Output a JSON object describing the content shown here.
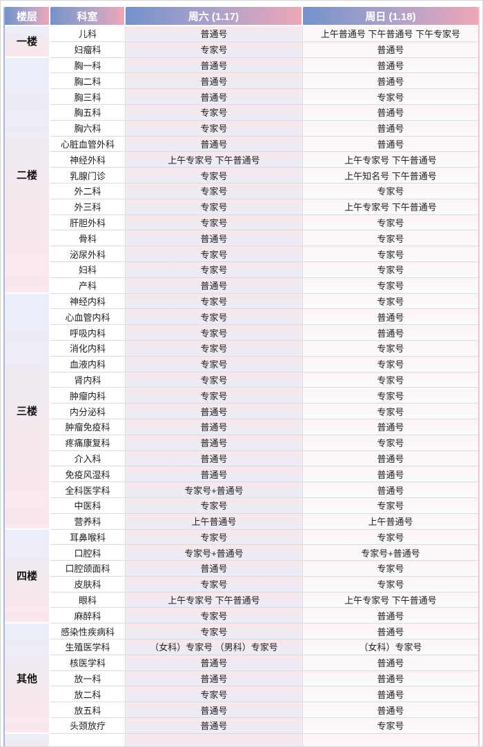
{
  "table": {
    "headers": {
      "floor": "楼层",
      "department": "科室",
      "saturday": "周六 (1.17)",
      "sunday": "周日 (1.18)"
    },
    "groups": [
      {
        "floor": "一楼",
        "rows": [
          {
            "dept": "儿科",
            "sat": "普通号",
            "sun": "上午普通号 下午普通号 下午专家号"
          },
          {
            "dept": "妇瘤科",
            "sat": "专家号",
            "sun": "普通号"
          }
        ]
      },
      {
        "floor": "二楼",
        "rows": [
          {
            "dept": "胸一科",
            "sat": "普通号",
            "sun": "普通号"
          },
          {
            "dept": "胸二科",
            "sat": "普通号",
            "sun": "普通号"
          },
          {
            "dept": "胸三科",
            "sat": "普通号",
            "sun": "专家号"
          },
          {
            "dept": "胸五科",
            "sat": "专家号",
            "sun": "普通号"
          },
          {
            "dept": "胸六科",
            "sat": "专家号",
            "sun": "普通号"
          },
          {
            "dept": "心脏血管外科",
            "sat": "普通号",
            "sun": "普通号"
          },
          {
            "dept": "神经外科",
            "sat": "上午专家号 下午普通号",
            "sun": "上午专家号 下午普通号"
          },
          {
            "dept": "乳腺门诊",
            "sat": "专家号",
            "sun": "上午知名号 下午普通号"
          },
          {
            "dept": "外二科",
            "sat": "专家号",
            "sun": "专家号"
          },
          {
            "dept": "外三科",
            "sat": "专家号",
            "sun": "上午专家号 下午普通号"
          },
          {
            "dept": "肝胆外科",
            "sat": "专家号",
            "sun": "专家号"
          },
          {
            "dept": "骨科",
            "sat": "普通号",
            "sun": "专家号"
          },
          {
            "dept": "泌尿外科",
            "sat": "专家号",
            "sun": "专家号"
          },
          {
            "dept": "妇科",
            "sat": "专家号",
            "sun": "专家号"
          },
          {
            "dept": "产科",
            "sat": "普通号",
            "sun": "专家号"
          }
        ]
      },
      {
        "floor": "三楼",
        "rows": [
          {
            "dept": "神经内科",
            "sat": "专家号",
            "sun": "专家号"
          },
          {
            "dept": "心血管内科",
            "sat": "专家号",
            "sun": "普通号"
          },
          {
            "dept": "呼吸内科",
            "sat": "专家号",
            "sun": "普通号"
          },
          {
            "dept": "消化内科",
            "sat": "专家号",
            "sun": "专家号"
          },
          {
            "dept": "血液内科",
            "sat": "专家号",
            "sun": "专家号"
          },
          {
            "dept": "肾内科",
            "sat": "专家号",
            "sun": "专家号"
          },
          {
            "dept": "肿瘤内科",
            "sat": "专家号",
            "sun": "专家号"
          },
          {
            "dept": "内分泌科",
            "sat": "普通号",
            "sun": "专家号"
          },
          {
            "dept": "肿瘤免疫科",
            "sat": "普通号",
            "sun": "普通号"
          },
          {
            "dept": "疼痛康复科",
            "sat": "普通号",
            "sun": "专家号"
          },
          {
            "dept": "介入科",
            "sat": "普通号",
            "sun": "普通号"
          },
          {
            "dept": "免疫风湿科",
            "sat": "普通号",
            "sun": "普通号"
          },
          {
            "dept": "全科医学科",
            "sat": "专家号+普通号",
            "sun": "普通号"
          },
          {
            "dept": "中医科",
            "sat": "专家号",
            "sun": "专家号"
          },
          {
            "dept": "营养科",
            "sat": "上午普通号",
            "sun": "上午普通号"
          }
        ]
      },
      {
        "floor": "四楼",
        "rows": [
          {
            "dept": "耳鼻喉科",
            "sat": "专家号",
            "sun": "专家号"
          },
          {
            "dept": "口腔科",
            "sat": "专家号+普通号",
            "sun": "专家号+普通号"
          },
          {
            "dept": "口腔颌面科",
            "sat": "普通号",
            "sun": "专家号"
          },
          {
            "dept": "皮肤科",
            "sat": "专家号",
            "sun": "专家号"
          },
          {
            "dept": "眼科",
            "sat": "上午专家号 下午普通号",
            "sun": "上午专家号 下午普通号"
          },
          {
            "dept": "麻醉科",
            "sat": "专家号",
            "sun": "普通号"
          }
        ]
      },
      {
        "floor": "其他",
        "rows": [
          {
            "dept": "感染性疾病科",
            "sat": "专家号",
            "sun": "普通号"
          },
          {
            "dept": "生殖医学科",
            "sat": "（女科）专家号 （男科）专家号",
            "sun": "（女科）专家号"
          },
          {
            "dept": "核医学科",
            "sat": "普通号",
            "sun": "普通号"
          },
          {
            "dept": "放一科",
            "sat": "普通号",
            "sun": "普通号"
          },
          {
            "dept": "放二科",
            "sat": "专家号",
            "sun": "普通号"
          },
          {
            "dept": "放五科",
            "sat": "普通号",
            "sun": "普通号"
          },
          {
            "dept": "头颈放疗",
            "sat": "普通号",
            "sun": "专家号"
          }
        ]
      }
    ]
  },
  "colors": {
    "header_gradient_start": "#7492cb",
    "header_gradient_end": "#eea6b7",
    "floor_cell_gradient_start": "#e9eefa",
    "floor_cell_gradient_end": "#fbe7ec",
    "saturday_cell_gradient_start": "#f8e7eb",
    "saturday_cell_gradient_end": "#eaecf8",
    "sunday_cell_gradient_start": "#fdf4f6",
    "sunday_cell_gradient_end": "#fbfbfd",
    "outer_border_left": "#a9bad8",
    "outer_border_right": "#eec3d2",
    "grid_line": "#dcdcdc",
    "header_text": "#ffffff",
    "body_text": "#1e1e1e"
  }
}
